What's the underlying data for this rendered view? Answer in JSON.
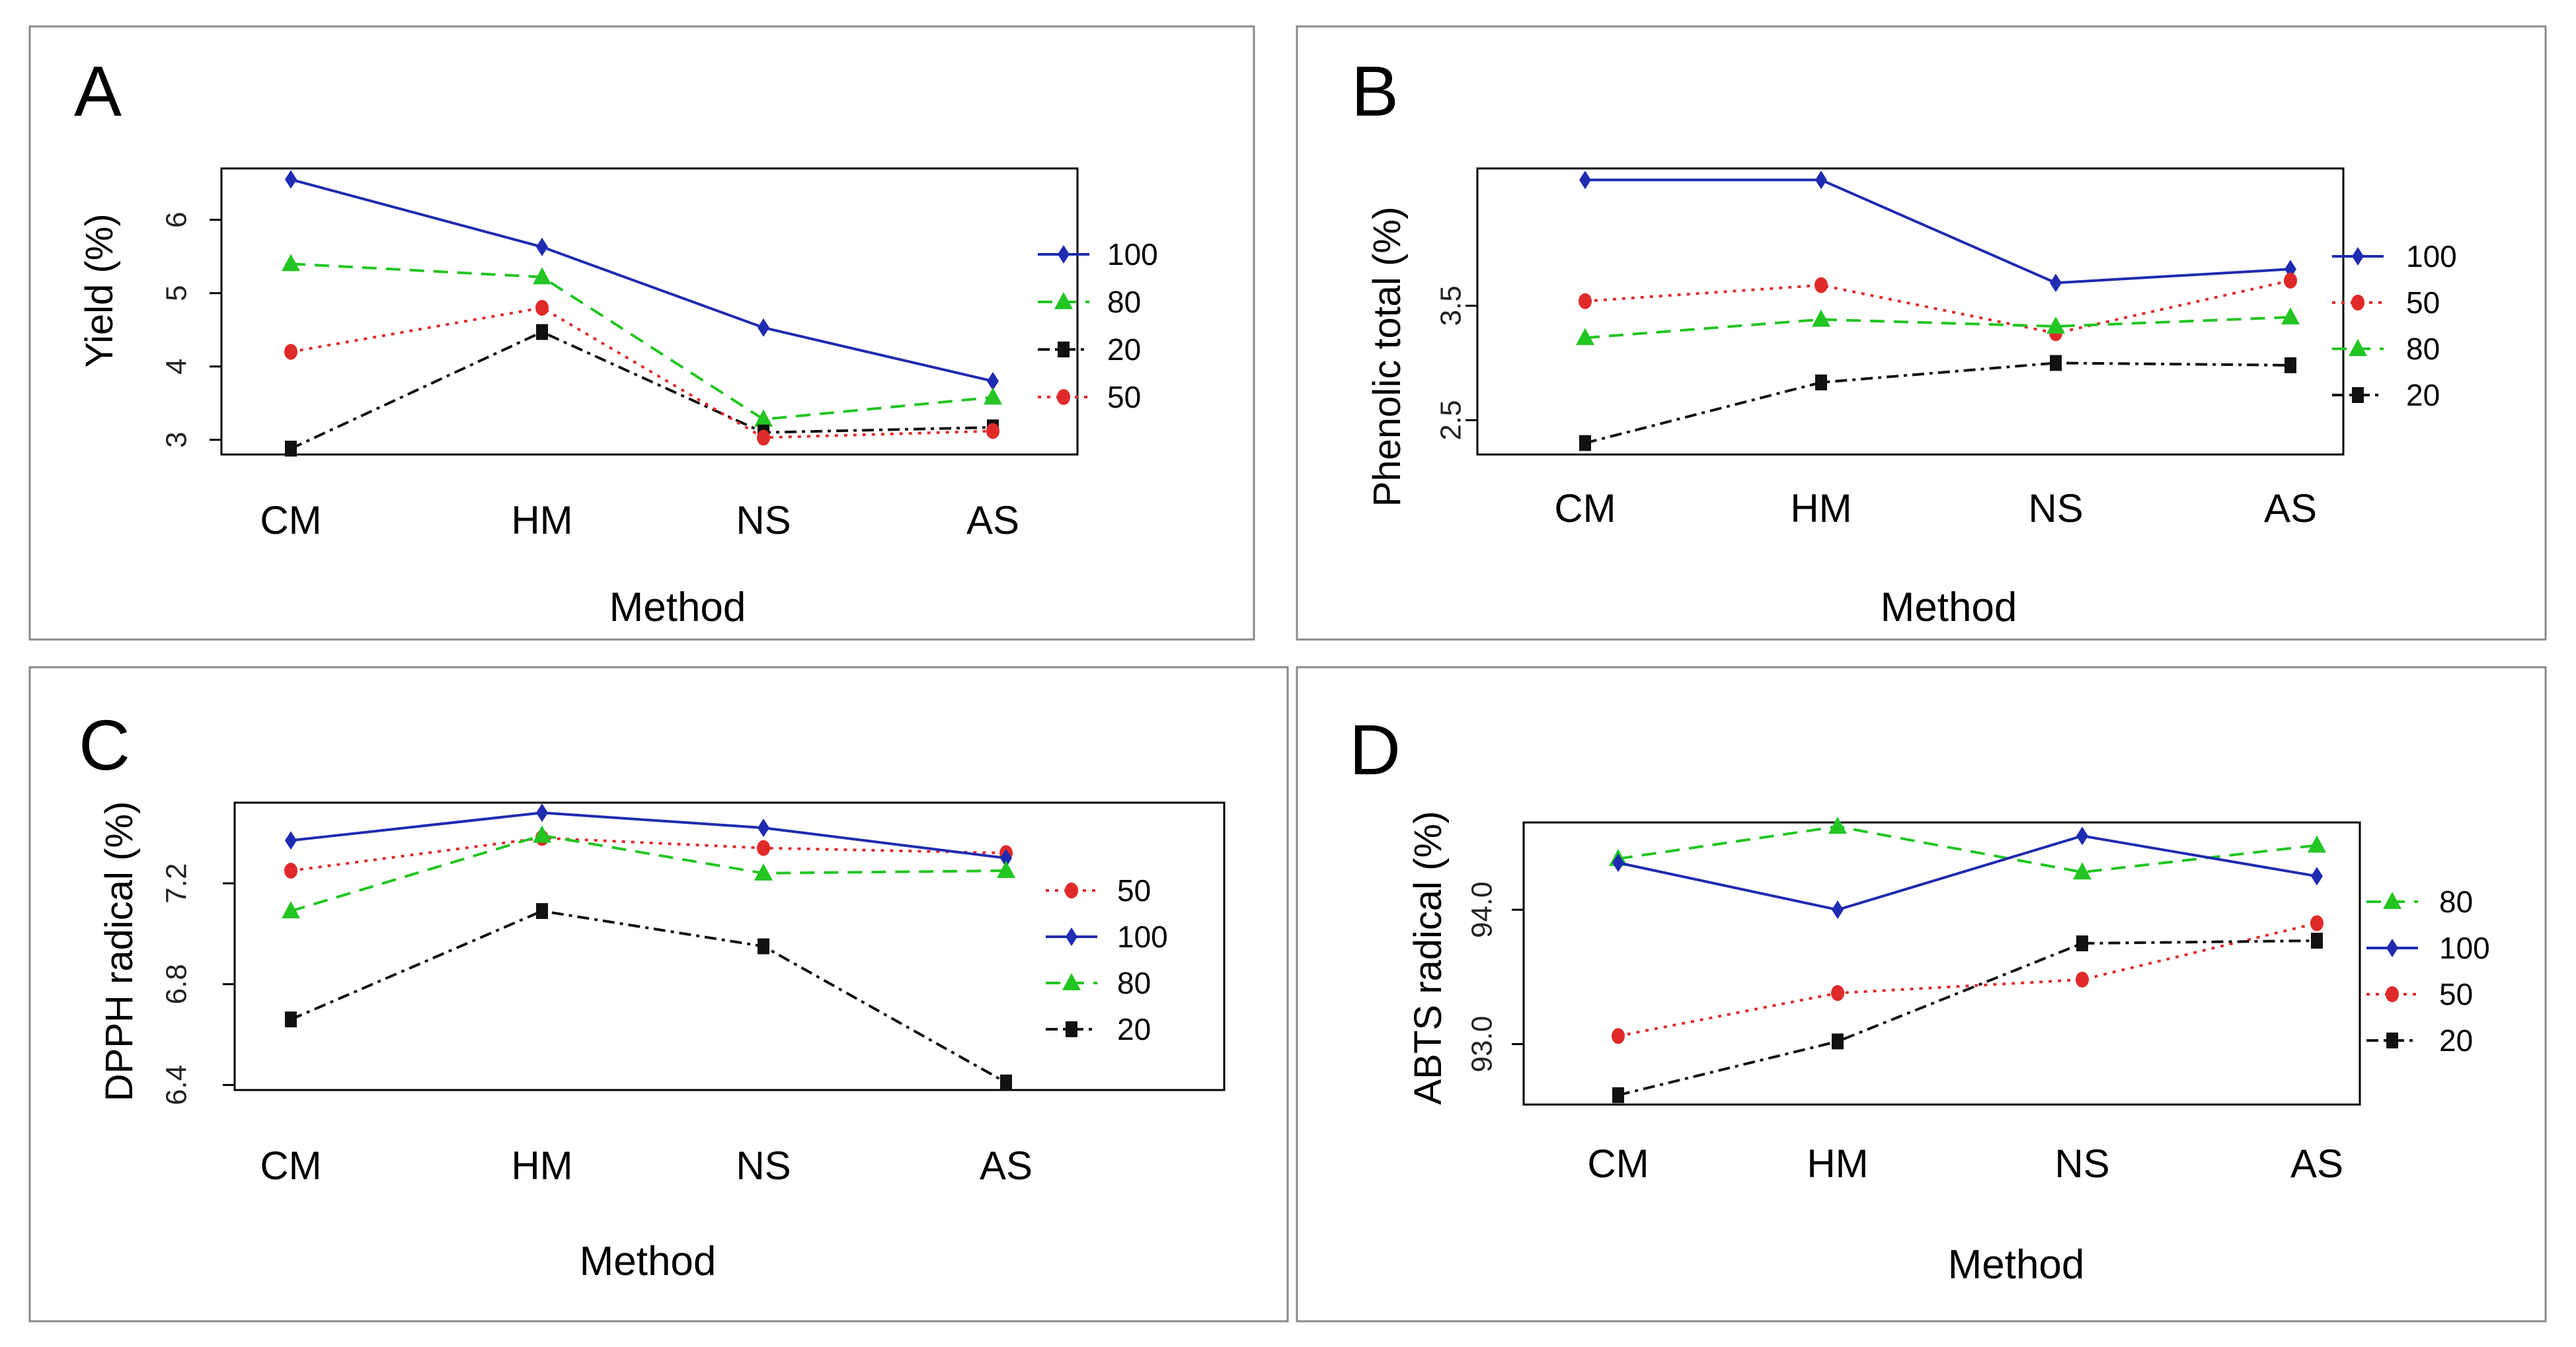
{
  "xlabel": "Method",
  "categories": [
    "CM",
    "HM",
    "NS",
    "AS"
  ],
  "colors": {
    "100": "#1f2bb0",
    "80": "#22c522",
    "50": "#e02a2a",
    "20": "#111111"
  },
  "chart_data": [
    {
      "type": "line",
      "panel_label": "A",
      "ylabel": "Yield (%)",
      "ylim": [
        2.8,
        6.7
      ],
      "yticks": [
        "3",
        "4",
        "5",
        "6"
      ],
      "legend": [
        "100",
        "80",
        "20",
        "50"
      ],
      "series": [
        {
          "name": "100",
          "values": [
            6.55,
            5.63,
            4.53,
            3.8
          ]
        },
        {
          "name": "80",
          "values": [
            5.4,
            5.22,
            3.28,
            3.58
          ]
        },
        {
          "name": "20",
          "values": [
            2.88,
            4.47,
            3.1,
            3.17
          ]
        },
        {
          "name": "50",
          "values": [
            4.2,
            4.8,
            3.03,
            3.12
          ]
        }
      ]
    },
    {
      "type": "line",
      "panel_label": "B",
      "ylabel": "Phenolic total (%)",
      "ylim": [
        2.2,
        4.7
      ],
      "yticks": [
        "2.5",
        "3.5"
      ],
      "legend": [
        "100",
        "50",
        "80",
        "20"
      ],
      "series": [
        {
          "name": "100",
          "values": [
            4.6,
            4.6,
            3.7,
            3.82
          ]
        },
        {
          "name": "50",
          "values": [
            3.54,
            3.68,
            3.26,
            3.72
          ]
        },
        {
          "name": "80",
          "values": [
            3.22,
            3.38,
            3.32,
            3.4
          ]
        },
        {
          "name": "20",
          "values": [
            2.3,
            2.83,
            3.0,
            2.98
          ]
        }
      ]
    },
    {
      "type": "line",
      "panel_label": "C",
      "ylabel": "DPPH radical (%)",
      "ylim": [
        6.38,
        7.52
      ],
      "yticks": [
        "6.4",
        "6.8",
        "7.2"
      ],
      "legend": [
        "50",
        "100",
        "80",
        "20"
      ],
      "series": [
        {
          "name": "50",
          "values": [
            7.25,
            7.38,
            7.34,
            7.32
          ]
        },
        {
          "name": "100",
          "values": [
            7.37,
            7.48,
            7.42,
            7.3
          ]
        },
        {
          "name": "80",
          "values": [
            7.09,
            7.39,
            7.24,
            7.25
          ]
        },
        {
          "name": "20",
          "values": [
            6.66,
            7.09,
            6.95,
            6.41
          ]
        }
      ]
    },
    {
      "type": "line",
      "panel_label": "D",
      "ylabel": "ABTS radical (%)",
      "ylim": [
        92.55,
        94.65
      ],
      "yticks": [
        "93.0",
        "94.0"
      ],
      "legend": [
        "80",
        "100",
        "50",
        "20"
      ],
      "series": [
        {
          "name": "80",
          "values": [
            94.38,
            94.62,
            94.28,
            94.48
          ]
        },
        {
          "name": "100",
          "values": [
            94.35,
            94.0,
            94.55,
            94.25
          ]
        },
        {
          "name": "50",
          "values": [
            93.06,
            93.38,
            93.48,
            93.9
          ]
        },
        {
          "name": "20",
          "values": [
            92.62,
            93.02,
            93.75,
            93.77
          ]
        }
      ]
    }
  ]
}
